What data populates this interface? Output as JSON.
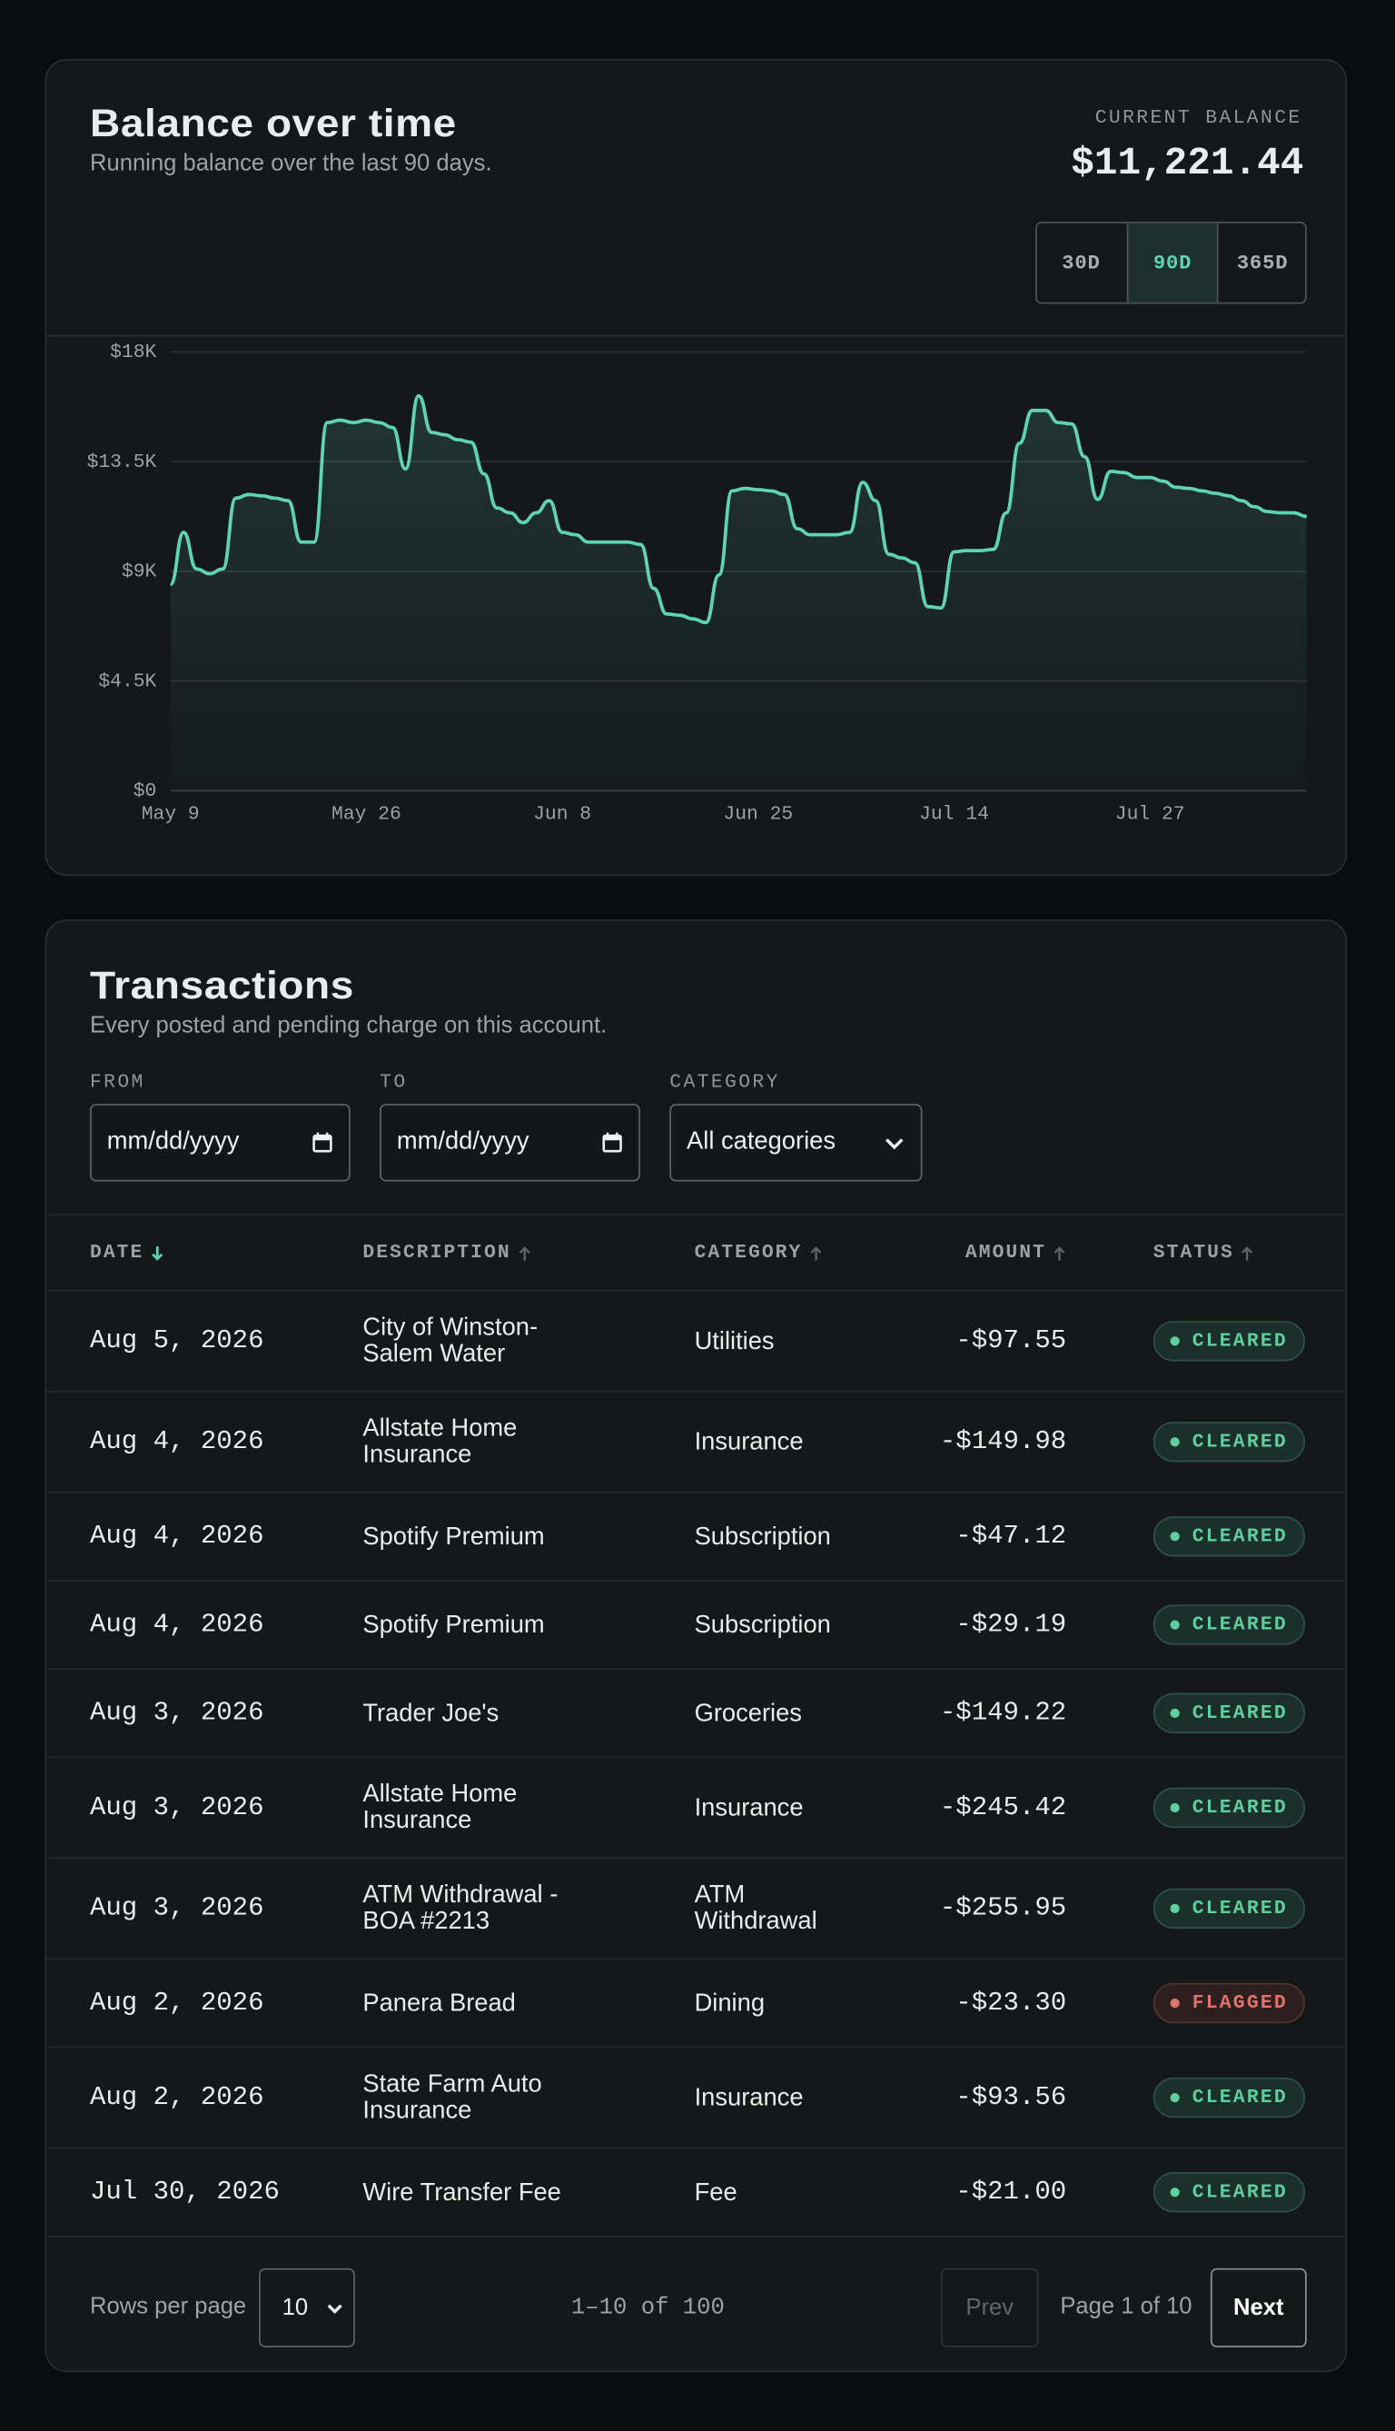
{
  "chart_data": {
    "type": "line",
    "title": "Balance over time",
    "subtitle": "Running balance over the last 90 days.",
    "color": "#5fd3b3",
    "grid": true,
    "categories": [
      "May 9",
      null,
      null,
      null,
      null,
      null,
      null,
      null,
      null,
      null,
      null,
      null,
      null,
      null,
      null,
      "May 26",
      null,
      null,
      null,
      null,
      null,
      null,
      null,
      null,
      null,
      null,
      null,
      null,
      null,
      null,
      "Jun 8",
      null,
      null,
      null,
      null,
      null,
      null,
      null,
      null,
      null,
      null,
      null,
      null,
      null,
      null,
      "Jun 25",
      null,
      null,
      null,
      null,
      null,
      null,
      null,
      null,
      null,
      null,
      null,
      null,
      null,
      null,
      "Jul 14",
      null,
      null,
      null,
      null,
      null,
      null,
      null,
      null,
      null,
      null,
      null,
      null,
      null,
      null,
      "Jul 27",
      null,
      null,
      null,
      null,
      null,
      null,
      null,
      null,
      null,
      null,
      null,
      null
    ],
    "values": [
      8.46,
      10.6,
      9.1,
      8.9,
      9.1,
      12.0,
      12.15,
      12.1,
      12.0,
      11.9,
      10.2,
      10.2,
      15.1,
      15.2,
      15.1,
      15.2,
      15.1,
      14.9,
      13.2,
      16.2,
      14.7,
      14.6,
      14.4,
      14.3,
      13.0,
      11.6,
      11.4,
      11.0,
      11.4,
      11.9,
      10.6,
      10.5,
      10.2,
      10.2,
      10.2,
      10.2,
      10.1,
      8.3,
      7.25,
      7.2,
      7.05,
      6.9,
      8.85,
      12.3,
      12.4,
      12.35,
      12.3,
      12.15,
      10.75,
      10.5,
      10.5,
      10.5,
      10.6,
      12.65,
      11.9,
      9.7,
      9.55,
      9.35,
      7.55,
      7.5,
      9.8,
      9.85,
      9.85,
      9.9,
      11.4,
      14.25,
      15.6,
      15.6,
      15.1,
      15.05,
      13.7,
      11.95,
      13.1,
      13.05,
      12.85,
      12.85,
      12.7,
      12.45,
      12.4,
      12.3,
      12.2,
      12.1,
      11.9,
      11.65,
      11.45,
      11.4,
      11.4,
      11.25
    ],
    "ylim": [
      0,
      18
    ],
    "yticks": [
      {
        "value": 0,
        "label": "$0"
      },
      {
        "value": 4.5,
        "label": "$4.5K"
      },
      {
        "value": 9,
        "label": "$9K"
      },
      {
        "value": 13.5,
        "label": "$13.5K"
      },
      {
        "value": 18,
        "label": "$18K"
      }
    ]
  },
  "balance": {
    "label": "CURRENT BALANCE",
    "value": "$11,221.44"
  },
  "ranges": {
    "options": [
      "30D",
      "90D",
      "365D"
    ],
    "selected": 1
  },
  "transactions": {
    "title": "Transactions",
    "subtitle": "Every posted and pending charge on this account.",
    "filters": [
      {
        "label": "FROM",
        "value": "mm/dd/yyyy"
      },
      {
        "label": "TO",
        "value": "mm/dd/yyyy"
      },
      {
        "label": "CATEGORY",
        "value": "All categories"
      }
    ],
    "columns": [
      "DATE",
      "DESCRIPTION",
      "CATEGORY",
      "AMOUNT",
      "STATUS"
    ],
    "sort": {
      "column": 0,
      "direction": "desc"
    },
    "rows": [
      {
        "date": "Aug 5, 2026",
        "description": "City of Winston-Salem Water",
        "category": "Utilities",
        "amount": "-$97.55",
        "status": "CLEARED"
      },
      {
        "date": "Aug 4, 2026",
        "description": "Allstate Home Insurance",
        "category": "Insurance",
        "amount": "-$149.98",
        "status": "CLEARED"
      },
      {
        "date": "Aug 4, 2026",
        "description": "Spotify Premium",
        "category": "Subscription",
        "amount": "-$47.12",
        "status": "CLEARED"
      },
      {
        "date": "Aug 4, 2026",
        "description": "Spotify Premium",
        "category": "Subscription",
        "amount": "-$29.19",
        "status": "CLEARED"
      },
      {
        "date": "Aug 3, 2026",
        "description": "Trader Joe's",
        "category": "Groceries",
        "amount": "-$149.22",
        "status": "CLEARED"
      },
      {
        "date": "Aug 3, 2026",
        "description": "Allstate Home Insurance",
        "category": "Insurance",
        "amount": "-$245.42",
        "status": "CLEARED"
      },
      {
        "date": "Aug 3, 2026",
        "description": "ATM Withdrawal - BOA #2213",
        "category": "ATM Withdrawal",
        "amount": "-$255.95",
        "status": "CLEARED"
      },
      {
        "date": "Aug 2, 2026",
        "description": "Panera Bread",
        "category": "Dining",
        "amount": "-$23.30",
        "status": "FLAGGED"
      },
      {
        "date": "Aug 2, 2026",
        "description": "State Farm Auto Insurance",
        "category": "Insurance",
        "amount": "-$93.56",
        "status": "CLEARED"
      },
      {
        "date": "Jul 30, 2026",
        "description": "Wire Transfer Fee",
        "category": "Fee",
        "amount": "-$21.00",
        "status": "CLEARED"
      }
    ],
    "pagination": {
      "rows_label": "Rows per page",
      "rows_per_page": 10,
      "range": "1–10 of 100",
      "prev": "Prev",
      "page": "Page 1 of 10",
      "next": "Next"
    }
  }
}
